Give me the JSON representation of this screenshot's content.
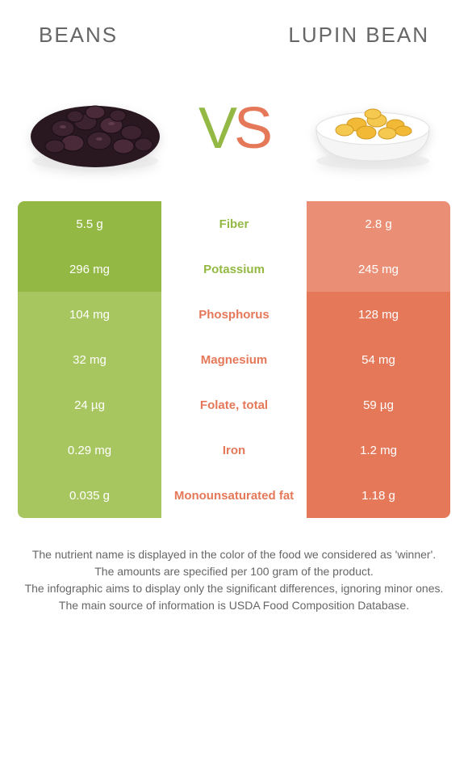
{
  "header": {
    "left_title": "BEANS",
    "right_title": "LUPIN BEAN"
  },
  "vs": {
    "v": "V",
    "s": "S"
  },
  "colors": {
    "left_strong": "#93b843",
    "left_weak": "#a7c65f",
    "right_strong": "#e57859",
    "right_weak": "#ea8f75",
    "mid_text_left": "#93b843",
    "mid_text_right": "#e57859",
    "background": "#ffffff"
  },
  "rows": [
    {
      "label": "Fiber",
      "left": "5.5 g",
      "right": "2.8 g",
      "winner": "left"
    },
    {
      "label": "Potassium",
      "left": "296 mg",
      "right": "245 mg",
      "winner": "left"
    },
    {
      "label": "Phosphorus",
      "left": "104 mg",
      "right": "128 mg",
      "winner": "right"
    },
    {
      "label": "Magnesium",
      "left": "32 mg",
      "right": "54 mg",
      "winner": "right"
    },
    {
      "label": "Folate, total",
      "left": "24 µg",
      "right": "59 µg",
      "winner": "right"
    },
    {
      "label": "Iron",
      "left": "0.29 mg",
      "right": "1.2 mg",
      "winner": "right"
    },
    {
      "label": "Monounsaturated fat",
      "left": "0.035 g",
      "right": "1.18 g",
      "winner": "right"
    }
  ],
  "footer": {
    "l1": "The nutrient name is displayed in the color of the food we considered as 'winner'.",
    "l2": "The amounts are specified per 100 gram of the product.",
    "l3": "The infographic aims to display only the significant differences, ignoring minor ones.",
    "l4": "The main source of information is USDA Food Composition Database."
  }
}
